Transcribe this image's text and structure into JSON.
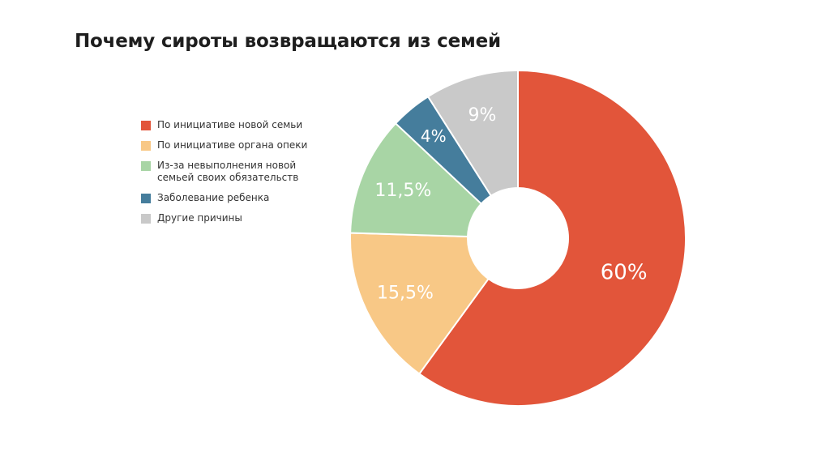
{
  "chart_data": {
    "type": "pie",
    "title": "Почему сироты возвращаются из семей",
    "legend_position": "left",
    "donut": true,
    "slices": [
      {
        "label": "По инициативе новой семьи",
        "value": 60,
        "value_label": "60%",
        "color": "#e2553a"
      },
      {
        "label": "По инициативе органа опеки",
        "value": 15.5,
        "value_label": "15,5%",
        "color": "#f8c886"
      },
      {
        "label": "Из-за невыполнения новой семьей своих обязательств",
        "value": 11.5,
        "value_label": "11,5%",
        "color": "#a8d5a5"
      },
      {
        "label": "Заболевание ребенка",
        "value": 4,
        "value_label": "4%",
        "color": "#457d9c"
      },
      {
        "label": "Другие причины",
        "value": 9,
        "value_label": "9%",
        "color": "#c9c9c9"
      }
    ]
  }
}
